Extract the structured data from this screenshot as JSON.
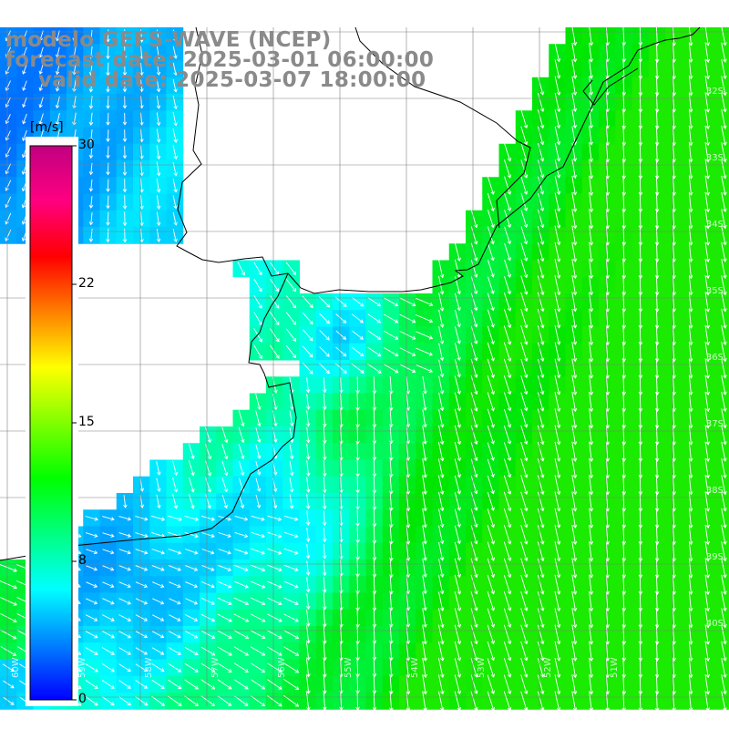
{
  "title": {
    "line1": "modelo GEFS-WAVE (NCEP)",
    "line2": "forecast date: 2025-03-01 06:00:00",
    "line3": "valid date: 2025-03-07 18:00:00"
  },
  "colorbar": {
    "unit": "[m/s]",
    "ticks": [
      "30",
      "22",
      "15",
      "8",
      "0"
    ],
    "colors": [
      "#0000ff",
      "#0080ff",
      "#00ffff",
      "#00ff80",
      "#00ff00",
      "#80ff00",
      "#ffff00",
      "#ff8000",
      "#ff0000",
      "#ff0080",
      "#c00080"
    ]
  },
  "axes": {
    "lat_labels": [
      "32S",
      "33S",
      "34S",
      "35S",
      "36S",
      "37S",
      "38S",
      "39S",
      "40S"
    ],
    "lon_labels": [
      "60W",
      "59W",
      "58W",
      "57W",
      "56W",
      "55W",
      "54W",
      "53W",
      "52W",
      "51W"
    ]
  },
  "colors": {
    "land": "#ffffff",
    "grid": "#808080",
    "coast": "#000000",
    "arrow": "#ffffff",
    "title": "#8a8a8a"
  }
}
